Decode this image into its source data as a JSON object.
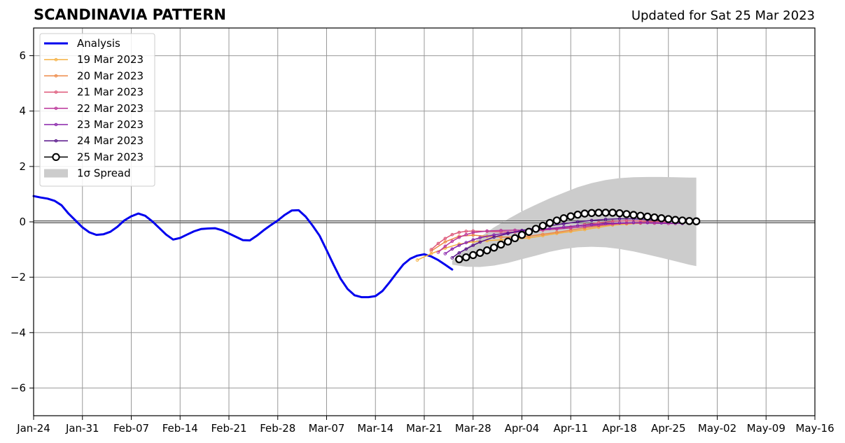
{
  "header": {
    "title": "SCANDINAVIA PATTERN",
    "updated": "Updated for Sat 25 Mar 2023"
  },
  "chart_data": {
    "type": "line",
    "title": "SCANDINAVIA PATTERN",
    "subtitle": "Updated for Sat 25 Mar 2023",
    "xlabel": "",
    "ylabel": "",
    "x_unit": "day of year 2023 (Jan 1 = 1)",
    "xlim_labels": [
      "Jan-24",
      "May-16"
    ],
    "xlim": [
      24,
      136
    ],
    "ylim": [
      -7,
      7
    ],
    "grid": true,
    "legend_position": "top-left",
    "x_tick_labels": [
      "Jan-24",
      "Jan-31",
      "Feb-07",
      "Feb-14",
      "Feb-21",
      "Feb-28",
      "Mar-07",
      "Mar-14",
      "Mar-21",
      "Mar-28",
      "Apr-04",
      "Apr-11",
      "Apr-18",
      "Apr-25",
      "May-02",
      "May-09",
      "May-16"
    ],
    "x_ticks": [
      24,
      31,
      38,
      45,
      52,
      59,
      66,
      73,
      80,
      87,
      94,
      101,
      108,
      115,
      122,
      129,
      136
    ],
    "y_tick_labels": [
      "6",
      "4",
      "2",
      "0",
      "−2",
      "−4",
      "−6"
    ],
    "y_ticks": [
      6,
      4,
      2,
      0,
      -2,
      -4,
      -6
    ],
    "analysis": {
      "name": "Analysis",
      "color": "#0000ee",
      "x": [
        24,
        25,
        26,
        27,
        28,
        29,
        30,
        31,
        32,
        33,
        34,
        35,
        36,
        37,
        38,
        39,
        40,
        41,
        42,
        43,
        44,
        45,
        46,
        47,
        48,
        49,
        50,
        51,
        52,
        53,
        54,
        55,
        56,
        57,
        58,
        59,
        60,
        61,
        62,
        63,
        64,
        65,
        66,
        67,
        68,
        69,
        70,
        71,
        72,
        73,
        74,
        75,
        76,
        77,
        78,
        79,
        80,
        81,
        82,
        83,
        84
      ],
      "y": [
        0.93,
        0.88,
        0.84,
        0.76,
        0.6,
        0.3,
        0.05,
        -0.2,
        -0.38,
        -0.47,
        -0.45,
        -0.36,
        -0.18,
        0.05,
        0.2,
        0.3,
        0.22,
        0.02,
        -0.22,
        -0.46,
        -0.64,
        -0.58,
        -0.46,
        -0.34,
        -0.26,
        -0.24,
        -0.23,
        -0.3,
        -0.42,
        -0.54,
        -0.66,
        -0.67,
        -0.5,
        -0.3,
        -0.12,
        0.05,
        0.25,
        0.41,
        0.42,
        0.19,
        -0.14,
        -0.5,
        -1.02,
        -1.55,
        -2.05,
        -2.42,
        -2.65,
        -2.72,
        -2.72,
        -2.68,
        -2.5,
        -2.19,
        -1.86,
        -1.54,
        -1.33,
        -1.22,
        -1.17,
        -1.25,
        -1.38,
        -1.55,
        -1.72
      ]
    },
    "spread": {
      "name": "1σ Spread",
      "color": "#cccccc",
      "x": [
        84,
        86,
        88,
        90,
        92,
        94,
        96,
        98,
        100,
        102,
        104,
        106,
        108,
        110,
        112,
        114,
        116,
        118,
        119
      ],
      "upper": [
        -1.4,
        -0.95,
        -0.55,
        -0.2,
        0.1,
        0.38,
        0.62,
        0.85,
        1.05,
        1.25,
        1.4,
        1.51,
        1.58,
        1.61,
        1.62,
        1.62,
        1.61,
        1.6,
        1.6
      ],
      "lower": [
        -1.55,
        -1.62,
        -1.63,
        -1.58,
        -1.48,
        -1.35,
        -1.22,
        -1.08,
        -0.98,
        -0.92,
        -0.9,
        -0.92,
        -0.98,
        -1.07,
        -1.18,
        -1.3,
        -1.42,
        -1.55,
        -1.6
      ]
    },
    "series": [
      {
        "name": "19 Mar 2023",
        "color": "#f5b041",
        "marker": "dot",
        "x": [
          79,
          81,
          83,
          85,
          87,
          89,
          91,
          93,
          95,
          97,
          99,
          101,
          103,
          105,
          107,
          109,
          111,
          113
        ],
        "y": [
          -1.38,
          -1.15,
          -0.95,
          -0.8,
          -0.72,
          -0.68,
          -0.65,
          -0.62,
          -0.58,
          -0.5,
          -0.42,
          -0.35,
          -0.28,
          -0.2,
          -0.12,
          -0.08,
          -0.05,
          -0.03
        ]
      },
      {
        "name": "20 Mar 2023",
        "color": "#ee8844",
        "marker": "dot",
        "x": [
          81,
          83,
          85,
          87,
          89,
          91,
          93,
          95,
          97,
          99,
          101,
          103,
          105,
          107,
          109,
          111,
          113,
          114
        ],
        "y": [
          -1.05,
          -0.72,
          -0.52,
          -0.48,
          -0.52,
          -0.55,
          -0.55,
          -0.52,
          -0.45,
          -0.38,
          -0.3,
          -0.22,
          -0.15,
          -0.08,
          -0.04,
          -0.02,
          0,
          0.02
        ]
      },
      {
        "name": "21 Mar 2023",
        "color": "#dd5577",
        "marker": "dot",
        "x": [
          81,
          82,
          83,
          84,
          85,
          86,
          87,
          89,
          91,
          93,
          95,
          97,
          99,
          101,
          103,
          105,
          107,
          109,
          111,
          113,
          115
        ],
        "y": [
          -1.0,
          -0.78,
          -0.6,
          -0.46,
          -0.38,
          -0.34,
          -0.33,
          -0.34,
          -0.36,
          -0.37,
          -0.35,
          -0.3,
          -0.25,
          -0.18,
          -0.1,
          -0.03,
          0.02,
          0.04,
          0.03,
          0.01,
          -0.01
        ]
      },
      {
        "name": "22 Mar 2023",
        "color": "#bb3399",
        "marker": "dot",
        "x": [
          82,
          83,
          84,
          85,
          86,
          87,
          89,
          91,
          93,
          95,
          97,
          99,
          101,
          103,
          105,
          107,
          109,
          111,
          113,
          115,
          116
        ],
        "y": [
          -1.1,
          -0.88,
          -0.7,
          -0.56,
          -0.46,
          -0.39,
          -0.33,
          -0.31,
          -0.3,
          -0.3,
          -0.29,
          -0.26,
          -0.22,
          -0.17,
          -0.12,
          -0.08,
          -0.05,
          -0.04,
          -0.05,
          -0.06,
          -0.06
        ]
      },
      {
        "name": "23 Mar 2023",
        "color": "#8822aa",
        "marker": "dot",
        "x": [
          83,
          84,
          85,
          86,
          87,
          88,
          90,
          92,
          94,
          96,
          98,
          100,
          102,
          104,
          106,
          108,
          110,
          112,
          114,
          116,
          117
        ],
        "y": [
          -1.15,
          -0.98,
          -0.85,
          -0.75,
          -0.65,
          -0.57,
          -0.47,
          -0.4,
          -0.34,
          -0.29,
          -0.24,
          -0.19,
          -0.14,
          -0.1,
          -0.06,
          -0.04,
          -0.03,
          -0.03,
          -0.04,
          -0.05,
          -0.06
        ]
      },
      {
        "name": "24 Mar 2023",
        "color": "#551188",
        "marker": "dot",
        "x": [
          84,
          85,
          86,
          87,
          88,
          90,
          92,
          94,
          96,
          98,
          100,
          102,
          104,
          106,
          108,
          110,
          112,
          114,
          116,
          117,
          118
        ],
        "y": [
          -1.3,
          -1.12,
          -0.98,
          -0.85,
          -0.73,
          -0.55,
          -0.42,
          -0.31,
          -0.22,
          -0.14,
          -0.07,
          0.0,
          0.05,
          0.09,
          0.11,
          0.11,
          0.08,
          0.05,
          0.02,
          0.01,
          0.0
        ]
      },
      {
        "name": "25 Mar 2023",
        "color": "#000000",
        "marker": "circle",
        "x": [
          85,
          86,
          87,
          88,
          89,
          90,
          91,
          92,
          93,
          94,
          95,
          96,
          97,
          98,
          99,
          100,
          101,
          102,
          103,
          104,
          105,
          106,
          107,
          108,
          109,
          110,
          111,
          112,
          113,
          114,
          115,
          116,
          117,
          118,
          119
        ],
        "y": [
          -1.35,
          -1.28,
          -1.2,
          -1.12,
          -1.03,
          -0.93,
          -0.82,
          -0.71,
          -0.59,
          -0.47,
          -0.36,
          -0.25,
          -0.14,
          -0.04,
          0.05,
          0.13,
          0.2,
          0.26,
          0.3,
          0.32,
          0.33,
          0.33,
          0.33,
          0.31,
          0.28,
          0.25,
          0.22,
          0.19,
          0.16,
          0.13,
          0.1,
          0.07,
          0.05,
          0.03,
          0.02
        ]
      }
    ],
    "legend": [
      "Analysis",
      "19 Mar 2023",
      "20 Mar 2023",
      "21 Mar 2023",
      "22 Mar 2023",
      "23 Mar 2023",
      "24 Mar 2023",
      "25 Mar 2023",
      "1σ Spread"
    ]
  }
}
